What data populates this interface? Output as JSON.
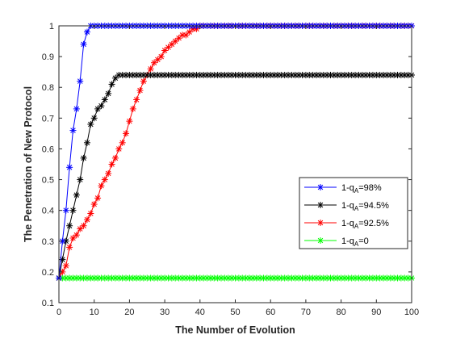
{
  "chart_data": {
    "type": "line",
    "title": "",
    "xlabel": "The Number of Evolution",
    "ylabel": "The Penetration of New Protocol",
    "xlim": [
      0,
      100
    ],
    "ylim": [
      0.1,
      1
    ],
    "xticks": [
      0,
      10,
      20,
      30,
      40,
      50,
      60,
      70,
      80,
      90,
      100
    ],
    "yticks": [
      0.1,
      0.2,
      0.3,
      0.4,
      0.5,
      0.6,
      0.7,
      0.8,
      0.9,
      1
    ],
    "xtick_labels": [
      "0",
      "10",
      "20",
      "30",
      "40",
      "50",
      "60",
      "70",
      "80",
      "90",
      "100"
    ],
    "ytick_labels": [
      "0.1",
      "0.2",
      "0.3",
      "0.4",
      "0.5",
      "0.6",
      "0.7",
      "0.8",
      "0.9",
      "1"
    ],
    "grid": false,
    "marker": "asterisk",
    "legend_position": "lower-right",
    "series": [
      {
        "legend_label": "1-q",
        "legend_sub": "A",
        "legend_tail": "=98%",
        "color": "#0000ff",
        "x": [
          0,
          1,
          2,
          3,
          4,
          5,
          6,
          7,
          8,
          9,
          10
        ],
        "y": [
          0.18,
          0.3,
          0.4,
          0.54,
          0.66,
          0.73,
          0.82,
          0.94,
          0.98,
          1.0,
          1.0
        ],
        "plateau_y": 1.0
      },
      {
        "legend_label": "1-q",
        "legend_sub": "A",
        "legend_tail": "=94.5%",
        "color": "#000000",
        "x": [
          0,
          1,
          2,
          3,
          4,
          5,
          6,
          7,
          8,
          9,
          10,
          11,
          12,
          13,
          14,
          15,
          16,
          17
        ],
        "y": [
          0.18,
          0.24,
          0.3,
          0.35,
          0.4,
          0.45,
          0.5,
          0.57,
          0.62,
          0.68,
          0.7,
          0.73,
          0.74,
          0.76,
          0.78,
          0.81,
          0.83,
          0.84
        ],
        "plateau_y": 0.84
      },
      {
        "legend_label": "1-q",
        "legend_sub": "A",
        "legend_tail": "=92.5%",
        "color": "#ff0000",
        "x": [
          0,
          1,
          2,
          3,
          4,
          5,
          6,
          7,
          8,
          9,
          10,
          11,
          12,
          13,
          14,
          15,
          16,
          17,
          18,
          19,
          20,
          21,
          22,
          23,
          24,
          25,
          26,
          27,
          28,
          29,
          30,
          31,
          32,
          33,
          34,
          35,
          36,
          37,
          38,
          39,
          40,
          41
        ],
        "y": [
          0.18,
          0.2,
          0.22,
          0.28,
          0.31,
          0.32,
          0.34,
          0.35,
          0.37,
          0.39,
          0.42,
          0.44,
          0.48,
          0.5,
          0.52,
          0.55,
          0.57,
          0.6,
          0.62,
          0.65,
          0.69,
          0.73,
          0.76,
          0.79,
          0.82,
          0.84,
          0.86,
          0.88,
          0.89,
          0.9,
          0.92,
          0.93,
          0.94,
          0.95,
          0.96,
          0.97,
          0.97,
          0.98,
          0.99,
          0.99,
          1.0,
          1.0
        ],
        "plateau_y": 1.0
      },
      {
        "legend_label": "1-q",
        "legend_sub": "A",
        "legend_tail": "=0",
        "color": "#00ff00",
        "x": [],
        "y": [],
        "plateau_y": 0.18
      }
    ]
  }
}
